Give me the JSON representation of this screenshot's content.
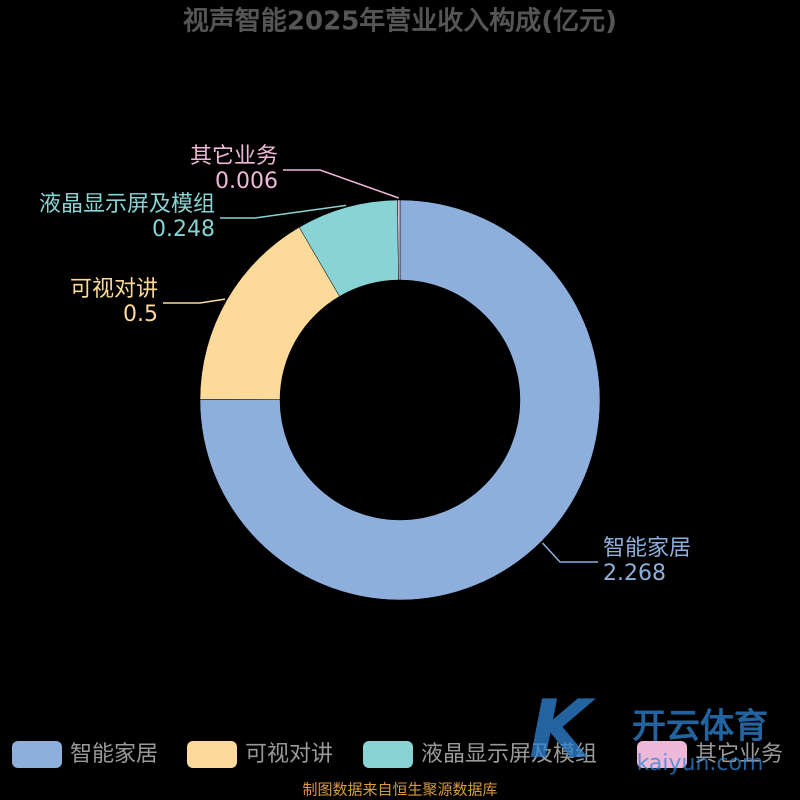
{
  "chart_data": {
    "type": "donut",
    "title": "视声智能2025年营业收入构成(亿元)",
    "categories": [
      "智能家居",
      "可视对讲",
      "液晶显示屏及模组",
      "其它业务"
    ],
    "values": [
      2.268,
      0.5,
      0.248,
      0.006
    ],
    "colors": [
      "#8eaedc",
      "#fdd99a",
      "#88d4d5",
      "#f0b8d8"
    ],
    "legend": "bottom",
    "source": "制图数据来自恒生聚源数据库"
  },
  "watermark": {
    "brand": "开云体育",
    "site": "kaiyun.com"
  }
}
